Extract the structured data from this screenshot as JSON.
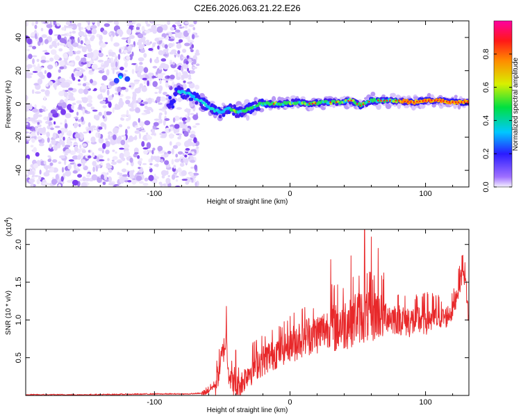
{
  "chart_data": [
    {
      "type": "heatmap",
      "title": "C2E6.2026.063.21.22.E26",
      "xlabel": "Height of straight line (km)",
      "ylabel": "Frequency (Hz)",
      "xlim": [
        -195,
        132
      ],
      "ylim": [
        -50,
        50
      ],
      "xticks": [
        "-100",
        "0",
        "100"
      ],
      "xtick_values": [
        -100,
        0,
        100
      ],
      "yticks": [
        "40",
        "20",
        "0",
        "-20",
        "-40"
      ],
      "ytick_values": [
        40,
        20,
        0,
        -20,
        -40
      ],
      "noise_region_end_km": -68,
      "ridge": [
        {
          "x": -85,
          "y": 8
        },
        {
          "x": -75,
          "y": 6
        },
        {
          "x": -65,
          "y": 1
        },
        {
          "x": -58,
          "y": -3
        },
        {
          "x": -52,
          "y": -5
        },
        {
          "x": -45,
          "y": -3
        },
        {
          "x": -38,
          "y": -5
        },
        {
          "x": -30,
          "y": -3
        },
        {
          "x": -22,
          "y": 0
        },
        {
          "x": -15,
          "y": 0
        },
        {
          "x": -5,
          "y": 0
        },
        {
          "x": 5,
          "y": 1
        },
        {
          "x": 15,
          "y": 0
        },
        {
          "x": 25,
          "y": 1
        },
        {
          "x": 35,
          "y": 1
        },
        {
          "x": 45,
          "y": 2
        },
        {
          "x": 52,
          "y": -1
        },
        {
          "x": 60,
          "y": 2
        },
        {
          "x": 70,
          "y": 2
        },
        {
          "x": 80,
          "y": 2
        },
        {
          "x": 90,
          "y": 1
        },
        {
          "x": 100,
          "y": 2
        },
        {
          "x": 110,
          "y": 2
        },
        {
          "x": 120,
          "y": 1
        },
        {
          "x": 132,
          "y": 1
        }
      ],
      "colorbar": {
        "label": "Normalized spectral amplitude",
        "range": [
          0,
          1
        ],
        "ticks": [
          "0.0",
          "0.2",
          "0.4",
          "0.6",
          "0.8"
        ],
        "tick_values": [
          0,
          0.2,
          0.4,
          0.6,
          0.8
        ]
      }
    },
    {
      "type": "line",
      "title": "",
      "xlabel": "Height of straight line (km)",
      "ylabel": "SNR (10 * v/v)",
      "scale_label": "(x10",
      "scale_exponent": "4",
      "scale_close": ")",
      "xlim": [
        -195,
        132
      ],
      "ylim": [
        0,
        2.2
      ],
      "xticks": [
        "-100",
        "0",
        "100"
      ],
      "xtick_values": [
        -100,
        0,
        100
      ],
      "yticks": [
        "0.5",
        "1.0",
        "1.5",
        "2.0"
      ],
      "ytick_values": [
        0.5,
        1.0,
        1.5,
        2.0
      ],
      "color": "#e8282a",
      "series": [
        {
          "name": "SNR",
          "x": [
            -195,
            -150,
            -100,
            -75,
            -65,
            -60,
            -55,
            -50,
            -47,
            -45,
            -42,
            -40,
            -35,
            -30,
            -25,
            -20,
            -15,
            -10,
            -5,
            0,
            10,
            20,
            25,
            30,
            40,
            45,
            50,
            55,
            60,
            65,
            70,
            75,
            80,
            90,
            100,
            110,
            115,
            120,
            125,
            128,
            130,
            132
          ],
          "y": [
            0.01,
            0.01,
            0.02,
            0.02,
            0.03,
            0.07,
            0.15,
            0.55,
            0.75,
            0.3,
            0.2,
            0.12,
            0.2,
            0.35,
            0.45,
            0.5,
            0.55,
            0.6,
            0.65,
            0.7,
            0.82,
            0.85,
            0.9,
            0.95,
            1.0,
            1.05,
            1.1,
            1.1,
            1.1,
            1.15,
            1.1,
            1.05,
            1.05,
            1.0,
            1.05,
            1.05,
            1.05,
            1.15,
            1.5,
            1.7,
            1.45,
            1.0
          ]
        }
      ],
      "highlights": [
        {
          "x": -47,
          "y": 1.18
        },
        {
          "x": -40,
          "y": 0.6
        },
        {
          "x": 30,
          "y": 1.8
        },
        {
          "x": 45,
          "y": 1.85
        },
        {
          "x": 55,
          "y": 2.2
        },
        {
          "x": 60,
          "y": 2.1
        },
        {
          "x": 65,
          "y": 1.95
        },
        {
          "x": 127,
          "y": 1.85
        }
      ]
    }
  ]
}
